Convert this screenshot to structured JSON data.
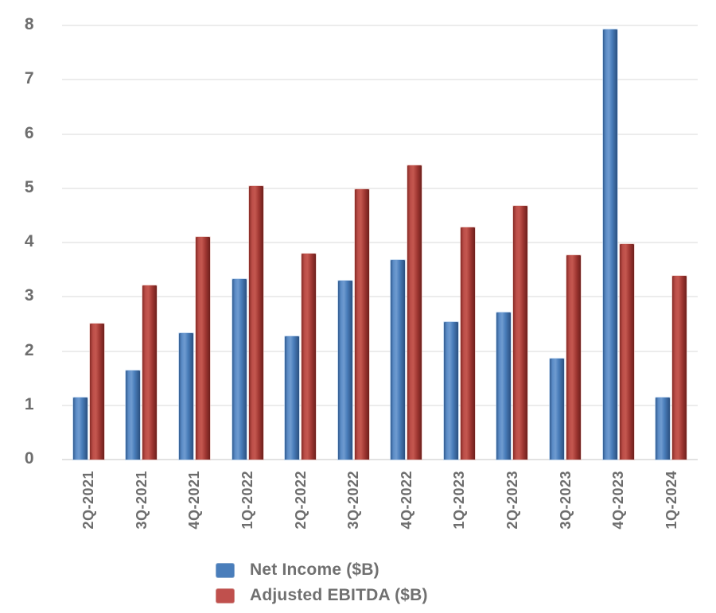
{
  "chart_data": {
    "type": "bar",
    "title": "",
    "xlabel": "",
    "ylabel": "",
    "categories": [
      "2Q-2021",
      "3Q-2021",
      "4Q-2021",
      "1Q-2022",
      "2Q-2022",
      "3Q-2022",
      "4Q-2022",
      "1Q-2023",
      "2Q-2023",
      "3Q-2023",
      "4Q-2023",
      "1Q-2024"
    ],
    "series": [
      {
        "name": "Net Income ($B)",
        "color": "#4a7ebb",
        "values": [
          1.15,
          1.64,
          2.33,
          3.32,
          2.27,
          3.3,
          3.68,
          2.53,
          2.71,
          1.86,
          7.93,
          1.14
        ]
      },
      {
        "name": "Adjusted EBITDA ($B)",
        "color": "#c0504d",
        "values": [
          2.5,
          3.21,
          4.1,
          5.04,
          3.8,
          4.98,
          5.42,
          4.28,
          4.67,
          3.77,
          3.97,
          3.38
        ]
      }
    ],
    "ylim": [
      0,
      8
    ],
    "yticks": [
      "0",
      "1",
      "2",
      "3",
      "4",
      "5",
      "6",
      "7",
      "8"
    ],
    "grid": true,
    "grid_color": "#ececec",
    "axis_text_color": "#6d6d6d",
    "legend_position": "bottom-left",
    "legend_text_color": "#707070"
  }
}
